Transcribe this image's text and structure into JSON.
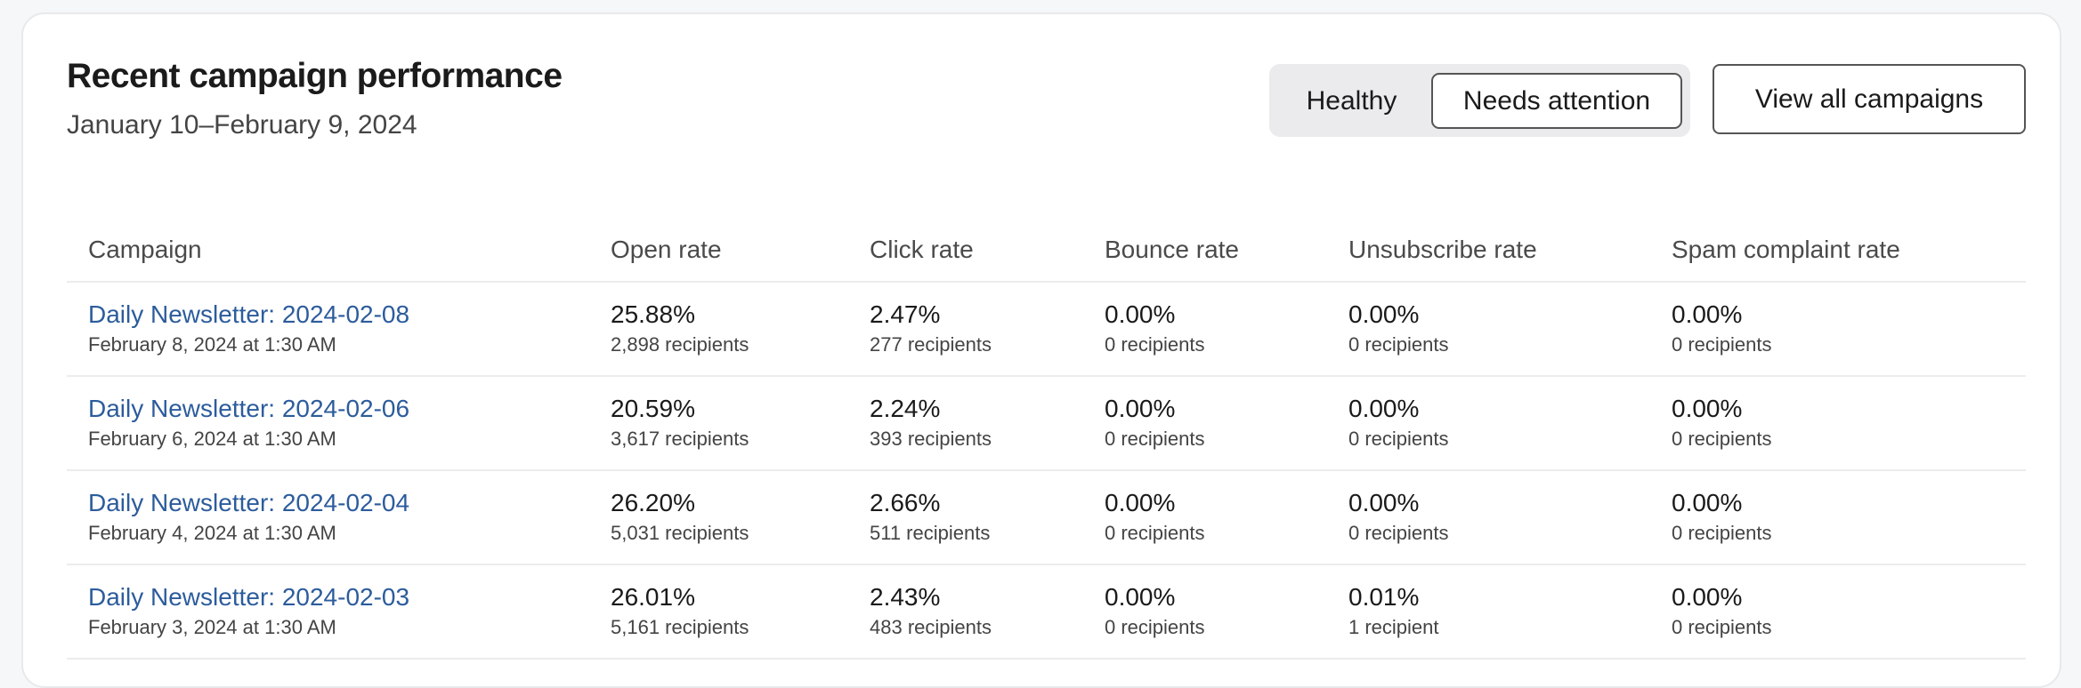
{
  "header": {
    "title": "Recent campaign performance",
    "date_range": "January 10–February 9, 2024",
    "segments": [
      {
        "label": "Healthy",
        "selected": false
      },
      {
        "label": "Needs attention",
        "selected": true
      }
    ],
    "view_all_label": "View all campaigns"
  },
  "colors": {
    "link": "#2c5c9c",
    "segment_bg": "#ebebed"
  },
  "table": {
    "columns": [
      "Campaign",
      "Open rate",
      "Click rate",
      "Bounce rate",
      "Unsubscribe rate",
      "Spam complaint rate"
    ],
    "rows": [
      {
        "name": "Daily Newsletter: 2024-02-08",
        "sent": "February 8, 2024 at 1:30 AM",
        "metrics": [
          {
            "rate": "25.88%",
            "count": "2,898 recipients"
          },
          {
            "rate": "2.47%",
            "count": "277 recipients"
          },
          {
            "rate": "0.00%",
            "count": "0 recipients"
          },
          {
            "rate": "0.00%",
            "count": "0 recipients"
          },
          {
            "rate": "0.00%",
            "count": "0 recipients"
          }
        ]
      },
      {
        "name": "Daily Newsletter: 2024-02-06",
        "sent": "February 6, 2024 at 1:30 AM",
        "metrics": [
          {
            "rate": "20.59%",
            "count": "3,617 recipients"
          },
          {
            "rate": "2.24%",
            "count": "393 recipients"
          },
          {
            "rate": "0.00%",
            "count": "0 recipients"
          },
          {
            "rate": "0.00%",
            "count": "0 recipients"
          },
          {
            "rate": "0.00%",
            "count": "0 recipients"
          }
        ]
      },
      {
        "name": "Daily Newsletter: 2024-02-04",
        "sent": "February 4, 2024 at 1:30 AM",
        "metrics": [
          {
            "rate": "26.20%",
            "count": "5,031 recipients"
          },
          {
            "rate": "2.66%",
            "count": "511 recipients"
          },
          {
            "rate": "0.00%",
            "count": "0 recipients"
          },
          {
            "rate": "0.00%",
            "count": "0 recipients"
          },
          {
            "rate": "0.00%",
            "count": "0 recipients"
          }
        ]
      },
      {
        "name": "Daily Newsletter: 2024-02-03",
        "sent": "February 3, 2024 at 1:30 AM",
        "metrics": [
          {
            "rate": "26.01%",
            "count": "5,161 recipients"
          },
          {
            "rate": "2.43%",
            "count": "483 recipients"
          },
          {
            "rate": "0.00%",
            "count": "0 recipients"
          },
          {
            "rate": "0.01%",
            "count": "1 recipient"
          },
          {
            "rate": "0.00%",
            "count": "0 recipients"
          }
        ]
      }
    ]
  }
}
